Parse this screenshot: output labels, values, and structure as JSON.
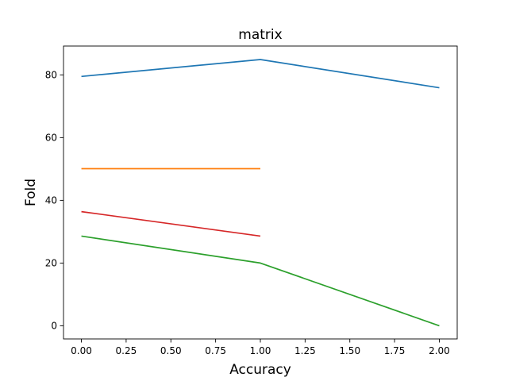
{
  "chart_data": {
    "type": "line",
    "title": "matrix",
    "xlabel": "Accuracy",
    "ylabel": "Fold",
    "xlim": [
      -0.1,
      2.1
    ],
    "ylim": [
      -4.2,
      89.2
    ],
    "xticks": [
      0.0,
      0.25,
      0.5,
      0.75,
      1.0,
      1.25,
      1.5,
      1.75,
      2.0
    ],
    "xtick_labels": [
      "0.00",
      "0.25",
      "0.50",
      "0.75",
      "1.00",
      "1.25",
      "1.50",
      "1.75",
      "2.00"
    ],
    "yticks": [
      0,
      20,
      40,
      60,
      80
    ],
    "ytick_labels": [
      "0",
      "20",
      "40",
      "60",
      "80"
    ],
    "grid": false,
    "series": [
      {
        "x": [
          0,
          1,
          2
        ],
        "values": [
          79.5,
          84.9,
          75.9
        ],
        "color": "#1f77b4"
      },
      {
        "x": [
          0,
          1
        ],
        "values": [
          50.1,
          50.1
        ],
        "color": "#ff7f0e"
      },
      {
        "x": [
          0,
          1,
          2
        ],
        "values": [
          28.6,
          20.0,
          0.0
        ],
        "color": "#2ca02c"
      },
      {
        "x": [
          0,
          1
        ],
        "values": [
          36.4,
          28.6
        ],
        "color": "#d62728"
      }
    ]
  }
}
